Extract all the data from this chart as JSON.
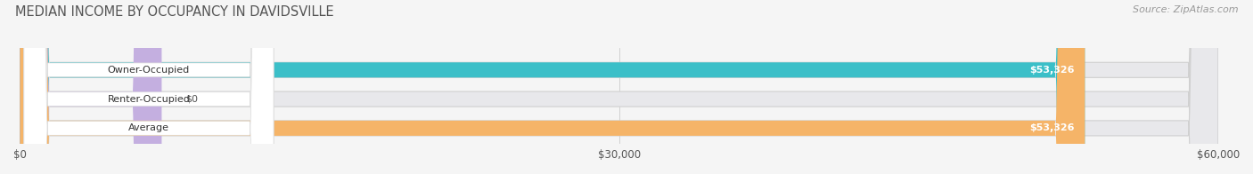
{
  "title": "MEDIAN INCOME BY OCCUPANCY IN DAVIDSVILLE",
  "source": "Source: ZipAtlas.com",
  "categories": [
    "Owner-Occupied",
    "Renter-Occupied",
    "Average"
  ],
  "values": [
    53326,
    0,
    53326
  ],
  "bar_colors": [
    "#3bbfc8",
    "#c4afe0",
    "#f5b468"
  ],
  "bar_bg_color": "#e8e8eb",
  "label_bg_color": "#ffffff",
  "title_color": "#555555",
  "source_color": "#999999",
  "xlim": [
    0,
    60000
  ],
  "xticks": [
    0,
    30000,
    60000
  ],
  "xtick_labels": [
    "$0",
    "$30,000",
    "$60,000"
  ],
  "bar_height": 0.52,
  "figsize": [
    14.06,
    1.96
  ],
  "dpi": 100
}
